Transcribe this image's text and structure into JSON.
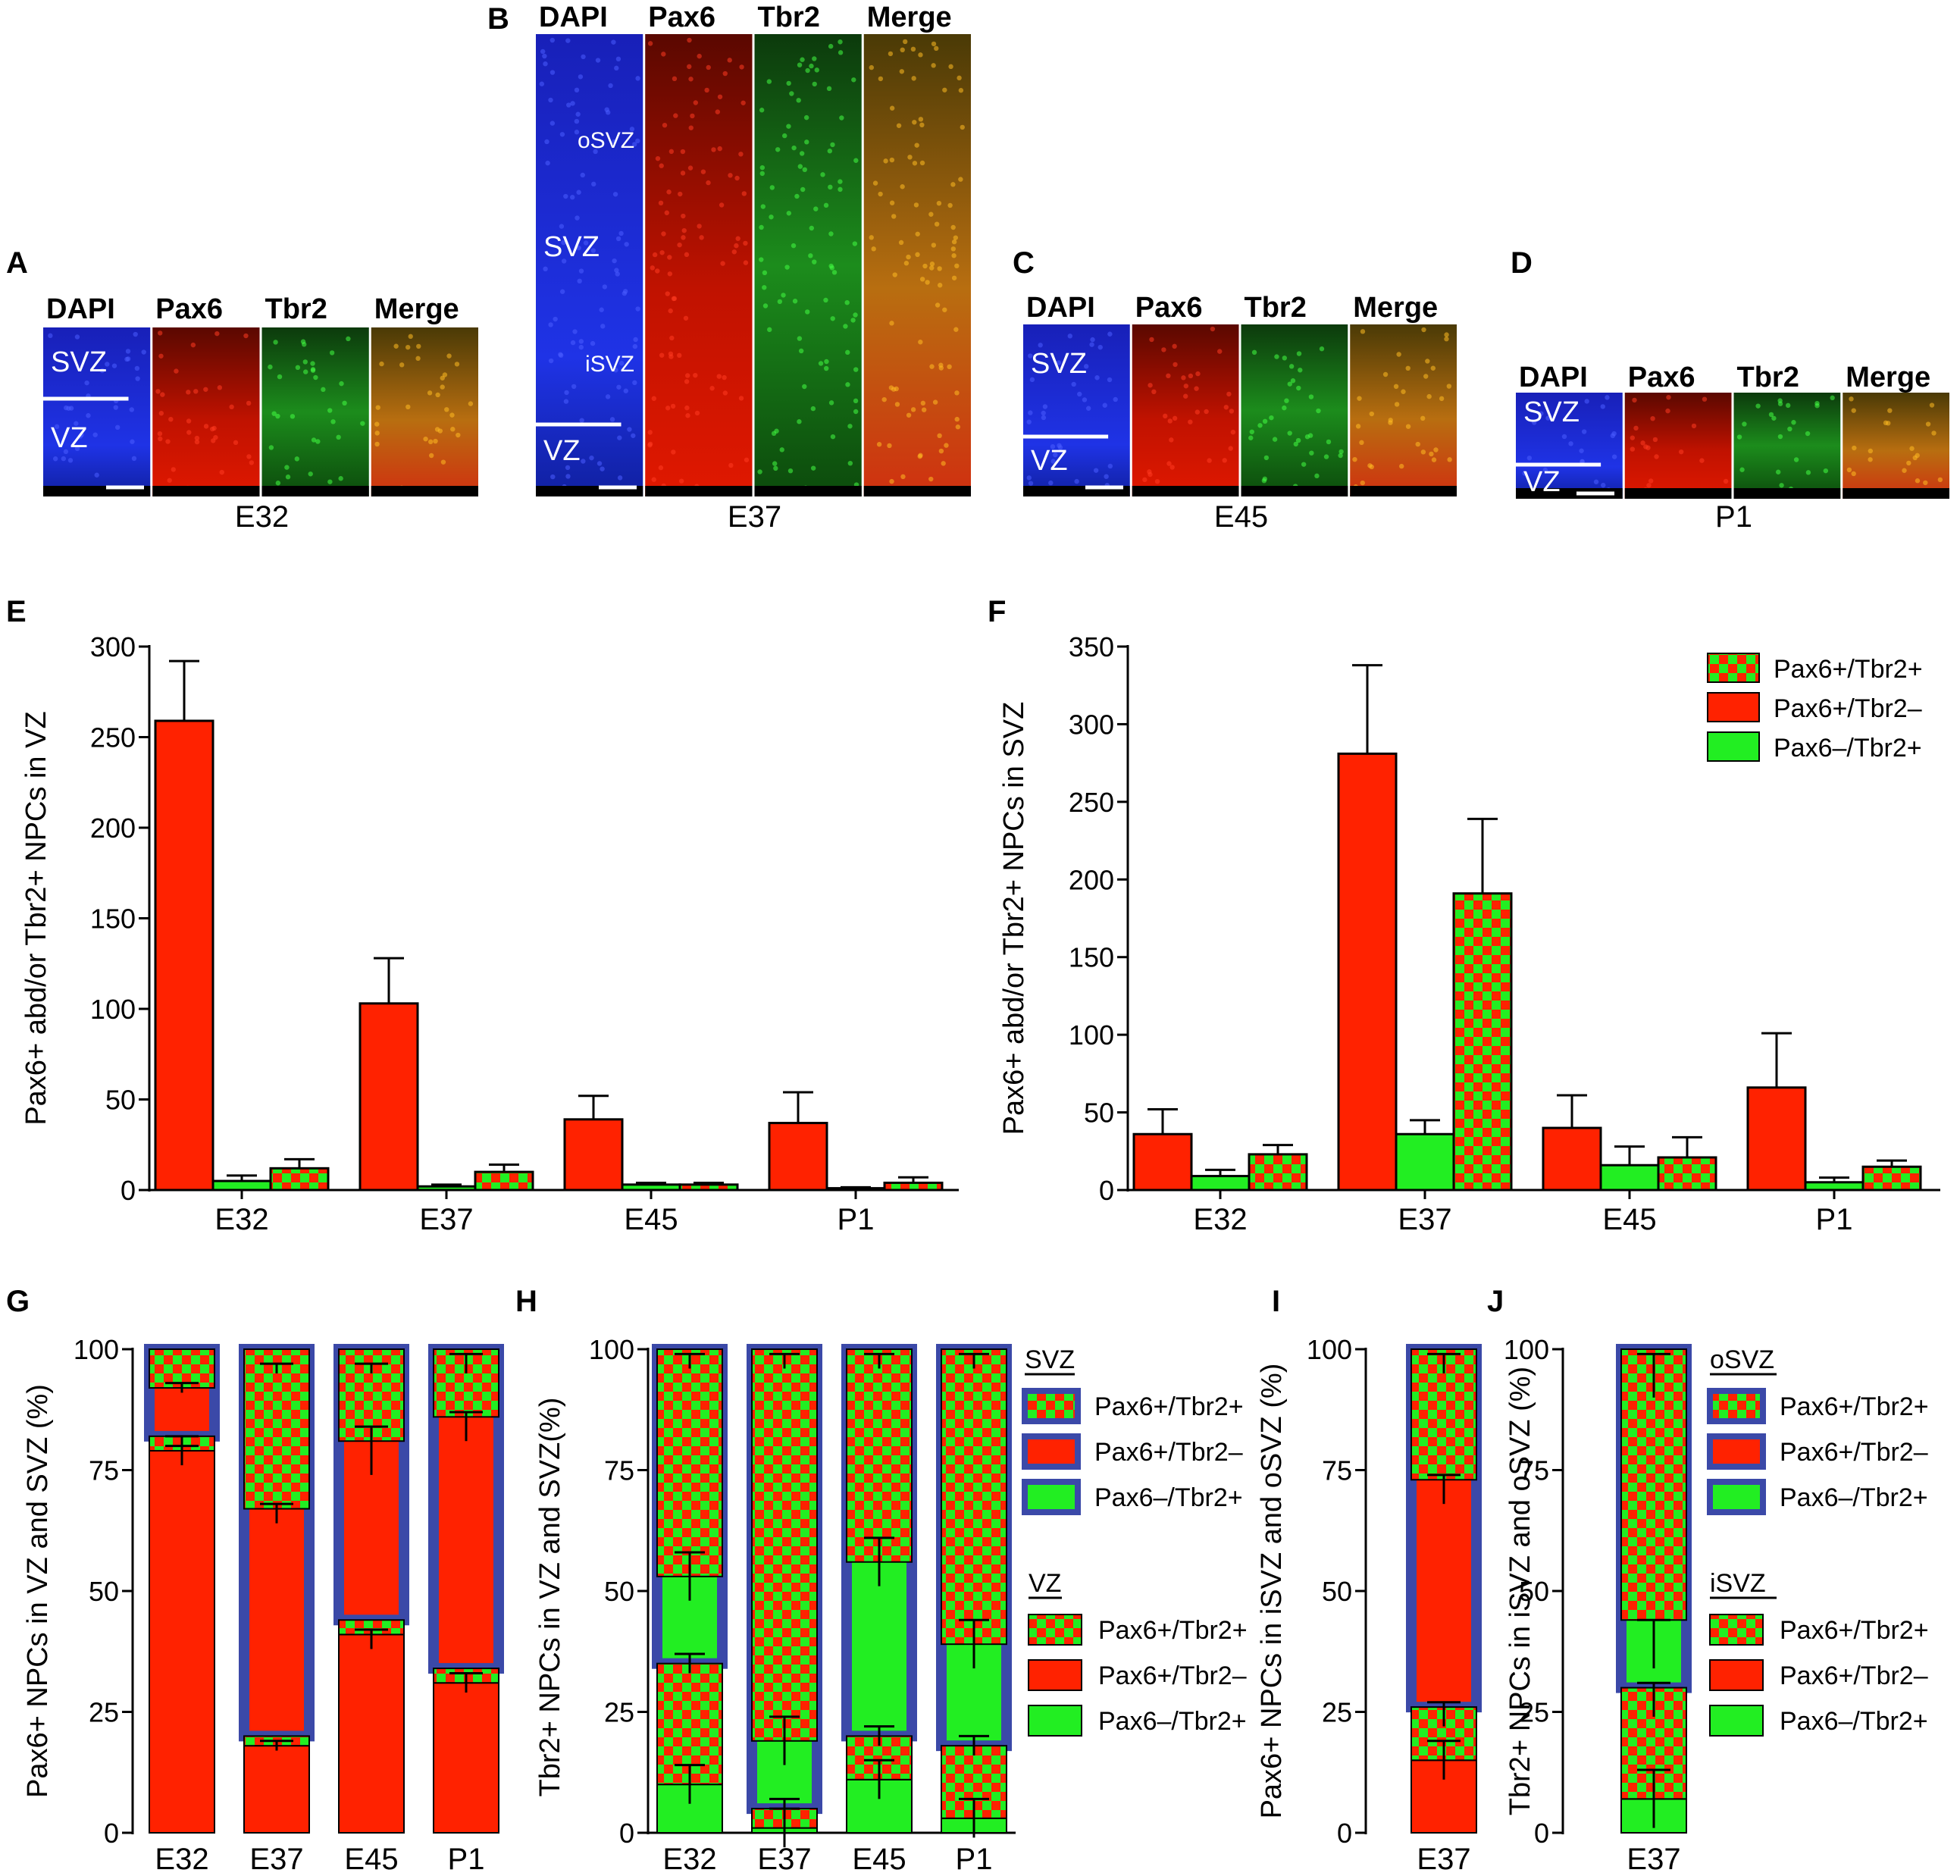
{
  "colors": {
    "red": "#ff2200",
    "green": "#22ee22",
    "frame": "#3b49a8",
    "dapi": "#1a2adb",
    "pax6": "#cc1500",
    "tbr2": "#1aa41a",
    "merge": "#c97f12"
  },
  "micrographs": [
    {
      "panel": "A",
      "stage": "E32",
      "channels": [
        "DAPI",
        "Pax6",
        "Tbr2",
        "Merge"
      ],
      "zones": [
        "SVZ",
        "VZ"
      ]
    },
    {
      "panel": "B",
      "stage": "E37",
      "channels": [
        "DAPI",
        "Pax6",
        "Tbr2",
        "Merge"
      ],
      "zones": [
        "oSVZ",
        "SVZ",
        "iSVZ",
        "VZ"
      ]
    },
    {
      "panel": "C",
      "stage": "E45",
      "channels": [
        "DAPI",
        "Pax6",
        "Tbr2",
        "Merge"
      ],
      "zones": [
        "SVZ",
        "VZ"
      ]
    },
    {
      "panel": "D",
      "stage": "P1",
      "channels": [
        "DAPI",
        "Pax6",
        "Tbr2",
        "Merge"
      ],
      "zones": [
        "SVZ",
        "VZ"
      ]
    }
  ],
  "chart_data": [
    {
      "panel": "E",
      "type": "bar",
      "ylabel": "Pax6+ abd/or Tbr2+ NPCs in VZ",
      "ylim": [
        0,
        300
      ],
      "yticks": [
        0,
        50,
        100,
        150,
        200,
        250,
        300
      ],
      "categories": [
        "E32",
        "E37",
        "E45",
        "P1"
      ],
      "series": [
        {
          "name": "Pax6+/Tbr2–",
          "fill": "red",
          "values": [
            259,
            103,
            39,
            37
          ],
          "errors": [
            33,
            25,
            13,
            17
          ]
        },
        {
          "name": "Pax6–/Tbr2+",
          "fill": "green",
          "values": [
            5,
            2,
            3,
            1
          ],
          "errors": [
            3,
            1,
            1,
            0.5
          ]
        },
        {
          "name": "Pax6+/Tbr2+",
          "fill": "check",
          "values": [
            12,
            10,
            3,
            4
          ],
          "errors": [
            5,
            4,
            1,
            3
          ]
        }
      ]
    },
    {
      "panel": "F",
      "type": "bar",
      "ylabel": "Pax6+ abd/or Tbr2+ NPCs in SVZ",
      "ylim": [
        0,
        350
      ],
      "yticks": [
        0,
        50,
        100,
        150,
        200,
        250,
        300,
        350
      ],
      "categories": [
        "E32",
        "E37",
        "E45",
        "P1"
      ],
      "legend": [
        "Pax6+/Tbr2+",
        "Pax6+/Tbr2–",
        "Pax6–/Tbr2+"
      ],
      "series": [
        {
          "name": "Pax6+/Tbr2–",
          "fill": "red",
          "values": [
            36,
            281,
            40,
            66
          ],
          "errors": [
            16,
            57,
            21,
            35
          ]
        },
        {
          "name": "Pax6–/Tbr2+",
          "fill": "green",
          "values": [
            9,
            36,
            16,
            5
          ],
          "errors": [
            4,
            9,
            12,
            3
          ]
        },
        {
          "name": "Pax6+/Tbr2+",
          "fill": "check",
          "values": [
            23,
            191,
            21,
            15
          ],
          "errors": [
            6,
            48,
            13,
            4
          ]
        }
      ]
    },
    {
      "panel": "G",
      "type": "stacked_bar",
      "ylabel": "Pax6+ NPCs in VZ and SVZ (%)",
      "ylim": [
        0,
        100
      ],
      "yticks": [
        0,
        25,
        50,
        75,
        100
      ],
      "categories": [
        "E32",
        "E37",
        "E45",
        "P1"
      ],
      "vz_red": [
        79,
        18,
        41,
        31
      ],
      "vz_check": [
        3,
        2,
        3,
        3
      ],
      "svz_red": [
        10,
        47,
        37,
        52
      ],
      "svz_check": [
        8,
        33,
        19,
        14
      ],
      "err": [
        [
          78,
          2
        ],
        [
          81,
          1
        ],
        [
          92,
          1
        ],
        [
          18,
          1
        ],
        [
          66,
          2
        ],
        [
          96,
          1
        ],
        [
          40,
          2
        ],
        [
          79,
          5
        ],
        [
          96,
          1
        ],
        [
          31,
          2
        ],
        [
          84,
          3
        ],
        [
          97,
          2
        ]
      ]
    },
    {
      "panel": "H",
      "type": "stacked_bar",
      "ylabel": "Tbr2+ NPCs in VZ and SVZ(%)",
      "ylim": [
        0,
        100
      ],
      "yticks": [
        0,
        25,
        50,
        75,
        100
      ],
      "categories": [
        "E32",
        "E37",
        "E45",
        "P1"
      ],
      "vz_green": [
        10,
        1,
        11,
        3
      ],
      "vz_check": [
        25,
        4,
        9,
        15
      ],
      "svz_green": [
        18,
        14,
        36,
        21
      ],
      "svz_check": [
        44,
        78,
        43,
        59
      ],
      "legend_groups": [
        {
          "title": "SVZ",
          "items": [
            "Pax6+/Tbr2+",
            "Pax6+/Tbr2–",
            "Pax6–/Tbr2+"
          ]
        },
        {
          "title": "VZ",
          "items": [
            "Pax6+/Tbr2+",
            "Pax6+/Tbr2–",
            "Pax6–/Tbr2+"
          ]
        }
      ]
    },
    {
      "panel": "I",
      "type": "stacked_bar",
      "ylabel": "Pax6+ NPCs in iSVZ and oSVZ (%)",
      "ylim": [
        0,
        100
      ],
      "yticks": [
        0,
        25,
        50,
        75,
        100
      ],
      "categories": [
        "E37"
      ],
      "isvz_red": [
        15
      ],
      "isvz_check": [
        11
      ],
      "osvz_red": [
        47
      ],
      "osvz_check": [
        26
      ]
    },
    {
      "panel": "J",
      "type": "stacked_bar",
      "ylabel": "Tbr2+ NPCs in iSVZ and oSVZ (%)",
      "ylim": [
        0,
        100
      ],
      "yticks": [
        0,
        25,
        50,
        75,
        100
      ],
      "categories": [
        "E37"
      ],
      "isvz_green": [
        7
      ],
      "isvz_check": [
        23
      ],
      "osvz_green": [
        14
      ],
      "osvz_check": [
        56
      ],
      "legend_groups": [
        {
          "title": "oSVZ",
          "items": [
            "Pax6+/Tbr2+",
            "Pax6+/Tbr2–",
            "Pax6–/Tbr2+"
          ]
        },
        {
          "title": "iSVZ",
          "items": [
            "Pax6+/Tbr2+",
            "Pax6+/Tbr2–",
            "Pax6–/Tbr2+"
          ]
        }
      ]
    }
  ]
}
